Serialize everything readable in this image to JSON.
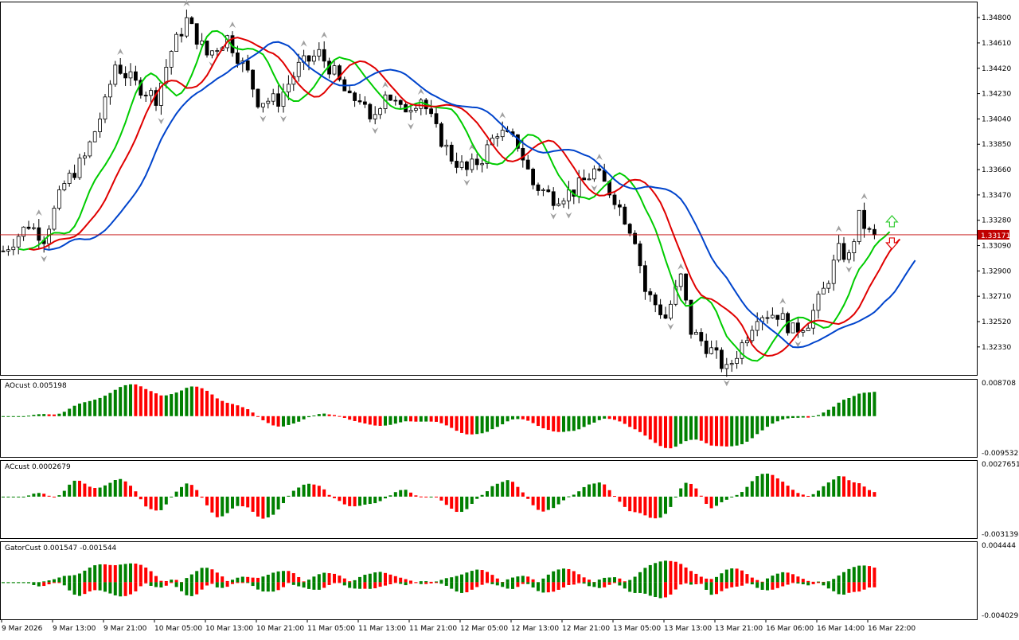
{
  "chart_data": [
    {
      "type": "candlestick",
      "panel": "price",
      "title": "",
      "y_ticks": [
        "1.34800",
        "1.34610",
        "1.34420",
        "1.34230",
        "1.34040",
        "1.33850",
        "1.33660",
        "1.33470",
        "1.33280",
        "1.33090",
        "1.32900",
        "1.32710",
        "1.32520",
        "1.32330"
      ],
      "ylim": [
        1.3212,
        1.3492
      ],
      "current_price": "1.33171",
      "bars": 172,
      "series": [
        {
          "name": "",
          "color": "#00cc00",
          "role": "lips (fast MA)"
        },
        {
          "name": "",
          "color": "#e00000",
          "role": "teeth (mid MA)"
        },
        {
          "name": "",
          "color": "#0044cc",
          "role": "jaw (slow MA)"
        }
      ],
      "signals": [
        {
          "type": "buy",
          "icon": "up-arrow-icon",
          "color": "#33cc33"
        },
        {
          "type": "sell",
          "icon": "down-arrow-icon",
          "color": "#e00000"
        }
      ],
      "fractal_markers": true
    },
    {
      "type": "histogram",
      "panel": "ao",
      "label": "AOcust 0.005198",
      "y_ticks": [
        "0.008708",
        "-0.009532"
      ],
      "ylim": [
        -0.009532,
        0.008708
      ],
      "colors": {
        "up": "#008000",
        "down": "#ff0000"
      }
    },
    {
      "type": "histogram",
      "panel": "ac",
      "label": "ACcust 0.0002679",
      "y_ticks": [
        "0.0027651",
        "-0.0031398"
      ],
      "ylim": [
        -0.0031398,
        0.0027651
      ],
      "colors": {
        "up": "#008000",
        "down": "#ff0000"
      }
    },
    {
      "type": "histogram",
      "panel": "gator",
      "label": "GatorCust 0.001547 -0.001544",
      "y_ticks": [
        "0.004444",
        "-0.004029"
      ],
      "ylim": [
        -0.004029,
        0.004444
      ],
      "colors": {
        "up": "#008000",
        "down": "#ff0000"
      }
    }
  ],
  "time_axis": [
    "9 Mar 2026",
    "9 Mar 13:00",
    "9 Mar 21:00",
    "10 Mar 05:00",
    "10 Mar 13:00",
    "10 Mar 21:00",
    "11 Mar 05:00",
    "11 Mar 13:00",
    "11 Mar 21:00",
    "12 Mar 05:00",
    "12 Mar 13:00",
    "12 Mar 21:00",
    "13 Mar 05:00",
    "13 Mar 13:00",
    "13 Mar 21:00",
    "16 Mar 06:00",
    "16 Mar 14:00",
    "16 Mar 22:00"
  ]
}
